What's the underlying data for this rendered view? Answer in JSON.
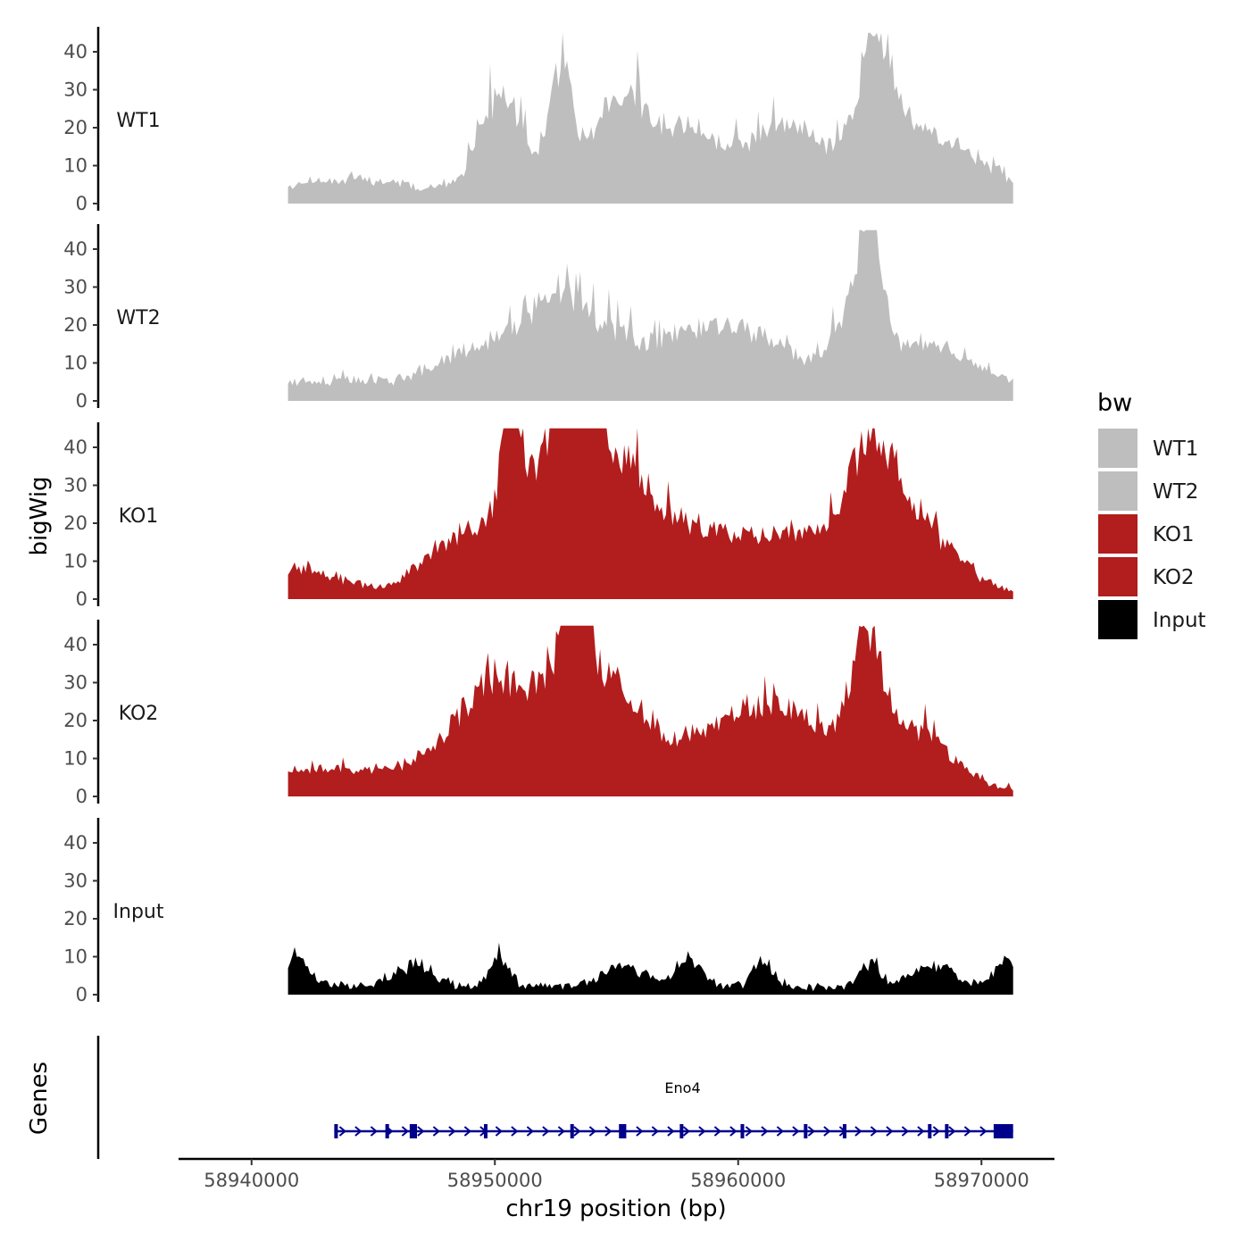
{
  "chart_data": {
    "type": "area",
    "chromosome": "chr19",
    "xlabel": "chr19 position (bp)",
    "ylabel": "bigWig",
    "genes_label": "Genes",
    "xlim": [
      58937000,
      58973000
    ],
    "region": [
      58941500,
      58971300
    ],
    "x_ticks": [
      58940000,
      58950000,
      58960000,
      58970000
    ],
    "x_tick_labels": [
      "58940000",
      "58950000",
      "58960000",
      "58970000"
    ],
    "y_ticks": [
      0,
      10,
      20,
      30,
      40
    ],
    "y_tick_labels": [
      "0",
      "10",
      "20",
      "30",
      "40"
    ],
    "ylim": [
      0,
      46
    ],
    "legend": {
      "title": "bw",
      "entries": [
        {
          "label": "WT1",
          "color": "#bebebe"
        },
        {
          "label": "WT2",
          "color": "#bebebe"
        },
        {
          "label": "KO1",
          "color": "#b21d1d"
        },
        {
          "label": "KO2",
          "color": "#b21d1d"
        },
        {
          "label": "Input",
          "color": "#000000"
        }
      ]
    },
    "series": [
      {
        "name": "WT1",
        "color": "#bebebe",
        "seed": 11,
        "peaks": [
          [
            58952700,
            36,
            500
          ],
          [
            58965600,
            34,
            700
          ],
          [
            58950300,
            30,
            900
          ],
          [
            58955000,
            27,
            1100
          ],
          [
            58957800,
            20,
            1400
          ],
          [
            58962000,
            22,
            1600
          ],
          [
            58966800,
            20,
            1500
          ],
          [
            58944000,
            5,
            3000
          ],
          [
            58969800,
            9,
            1400
          ]
        ]
      },
      {
        "name": "WT2",
        "color": "#bebebe",
        "seed": 23,
        "peaks": [
          [
            58965400,
            36,
            400
          ],
          [
            58952600,
            26,
            1500
          ],
          [
            58965000,
            22,
            900
          ],
          [
            58960500,
            16,
            2200
          ],
          [
            58956500,
            13,
            2500
          ],
          [
            58949000,
            12,
            1700
          ],
          [
            58968000,
            14,
            2000
          ],
          [
            58943000,
            4,
            2500
          ]
        ]
      },
      {
        "name": "KO1",
        "color": "#b21d1d",
        "seed": 37,
        "peaks": [
          [
            58950700,
            41,
            350
          ],
          [
            58953300,
            40,
            800
          ],
          [
            58955000,
            32,
            1400
          ],
          [
            58965500,
            35,
            1000
          ],
          [
            58951500,
            30,
            1800
          ],
          [
            58958500,
            17,
            2200
          ],
          [
            58963000,
            15,
            1800
          ],
          [
            58967500,
            18,
            1500
          ],
          [
            58942000,
            7,
            1500
          ],
          [
            58948000,
            11,
            1200
          ]
        ]
      },
      {
        "name": "KO2",
        "color": "#b21d1d",
        "seed": 53,
        "peaks": [
          [
            58953300,
            36,
            500
          ],
          [
            58965300,
            36,
            600
          ],
          [
            58951500,
            28,
            1800
          ],
          [
            58954700,
            27,
            1400
          ],
          [
            58959500,
            18,
            2200
          ],
          [
            58962500,
            16,
            1800
          ],
          [
            58967200,
            18,
            1500
          ],
          [
            58949200,
            16,
            1300
          ],
          [
            58942000,
            5,
            2000
          ],
          [
            58946000,
            5,
            2000
          ]
        ]
      },
      {
        "name": "Input",
        "color": "#000000",
        "seed": 71,
        "peaks": [
          [
            58941900,
            9,
            500
          ],
          [
            58950200,
            9,
            400
          ],
          [
            58958000,
            9,
            500
          ],
          [
            58961000,
            8,
            400
          ],
          [
            58965400,
            7,
            400
          ],
          [
            58971000,
            9,
            400
          ],
          [
            58955300,
            6,
            900
          ],
          [
            58946600,
            6,
            800
          ],
          [
            58968000,
            6,
            900
          ]
        ]
      }
    ],
    "genes": [
      {
        "name": "Eno4",
        "strand": "+",
        "start": 58943400,
        "end": 58971300,
        "color": "#00008b",
        "exons": [
          [
            58943400,
            58943520
          ],
          [
            58945500,
            58945650
          ],
          [
            58946500,
            58946800
          ],
          [
            58949550,
            58949620
          ],
          [
            58953100,
            58953220
          ],
          [
            58955100,
            58955400
          ],
          [
            58957600,
            58957700
          ],
          [
            58960100,
            58960200
          ],
          [
            58962700,
            58962800
          ],
          [
            58964300,
            58964450
          ],
          [
            58967800,
            58967880
          ],
          [
            58968500,
            58968600
          ],
          [
            58970500,
            58971300
          ]
        ]
      }
    ]
  }
}
